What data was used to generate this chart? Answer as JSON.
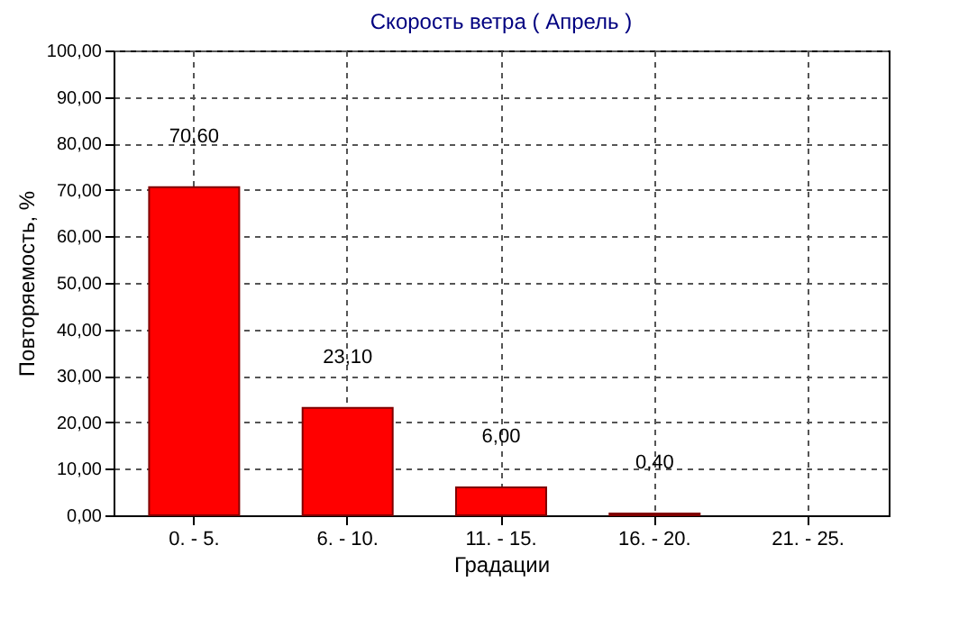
{
  "chart_data": {
    "type": "bar",
    "title": "Скорость ветра    ( Апрель )",
    "xlabel": "Градации",
    "ylabel": "Повторяемость, %",
    "categories": [
      "0. - 5.",
      "6. - 10.",
      "11. - 15.",
      "16. - 20.",
      "21. - 25."
    ],
    "values": [
      70.6,
      23.1,
      6.0,
      0.4,
      null
    ],
    "value_labels": [
      "70,60",
      "23,10",
      "6,00",
      "0,40",
      null
    ],
    "color": "#ff0000",
    "ylim": [
      0,
      100
    ],
    "yticks": [
      {
        "value": 0,
        "label": "0,00"
      },
      {
        "value": 10,
        "label": "10,00"
      },
      {
        "value": 20,
        "label": "20,00"
      },
      {
        "value": 30,
        "label": "30,00"
      },
      {
        "value": 40,
        "label": "40,00"
      },
      {
        "value": 50,
        "label": "50,00"
      },
      {
        "value": 60,
        "label": "60,00"
      },
      {
        "value": 70,
        "label": "70,00"
      },
      {
        "value": 80,
        "label": "80,00"
      },
      {
        "value": 90,
        "label": "90,00"
      },
      {
        "value": 100,
        "label": "100,00"
      }
    ],
    "grid": true
  }
}
